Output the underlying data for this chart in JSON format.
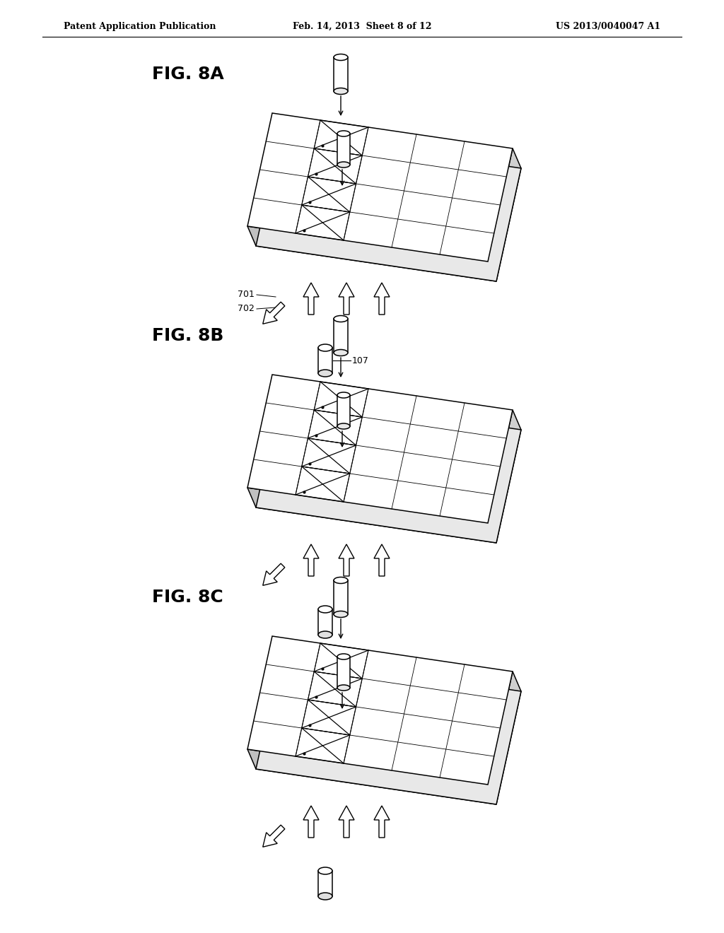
{
  "bg_color": "#ffffff",
  "header_left": "Patent Application Publication",
  "header_center": "Feb. 14, 2013  Sheet 8 of 12",
  "header_right": "US 2013/0040047 A1",
  "fig_labels": [
    "FIG. 8A",
    "FIG. 8B",
    "FIG. 8C"
  ],
  "fig_label_701": "701",
  "fig_label_702": "702",
  "fig_label_107": "107"
}
